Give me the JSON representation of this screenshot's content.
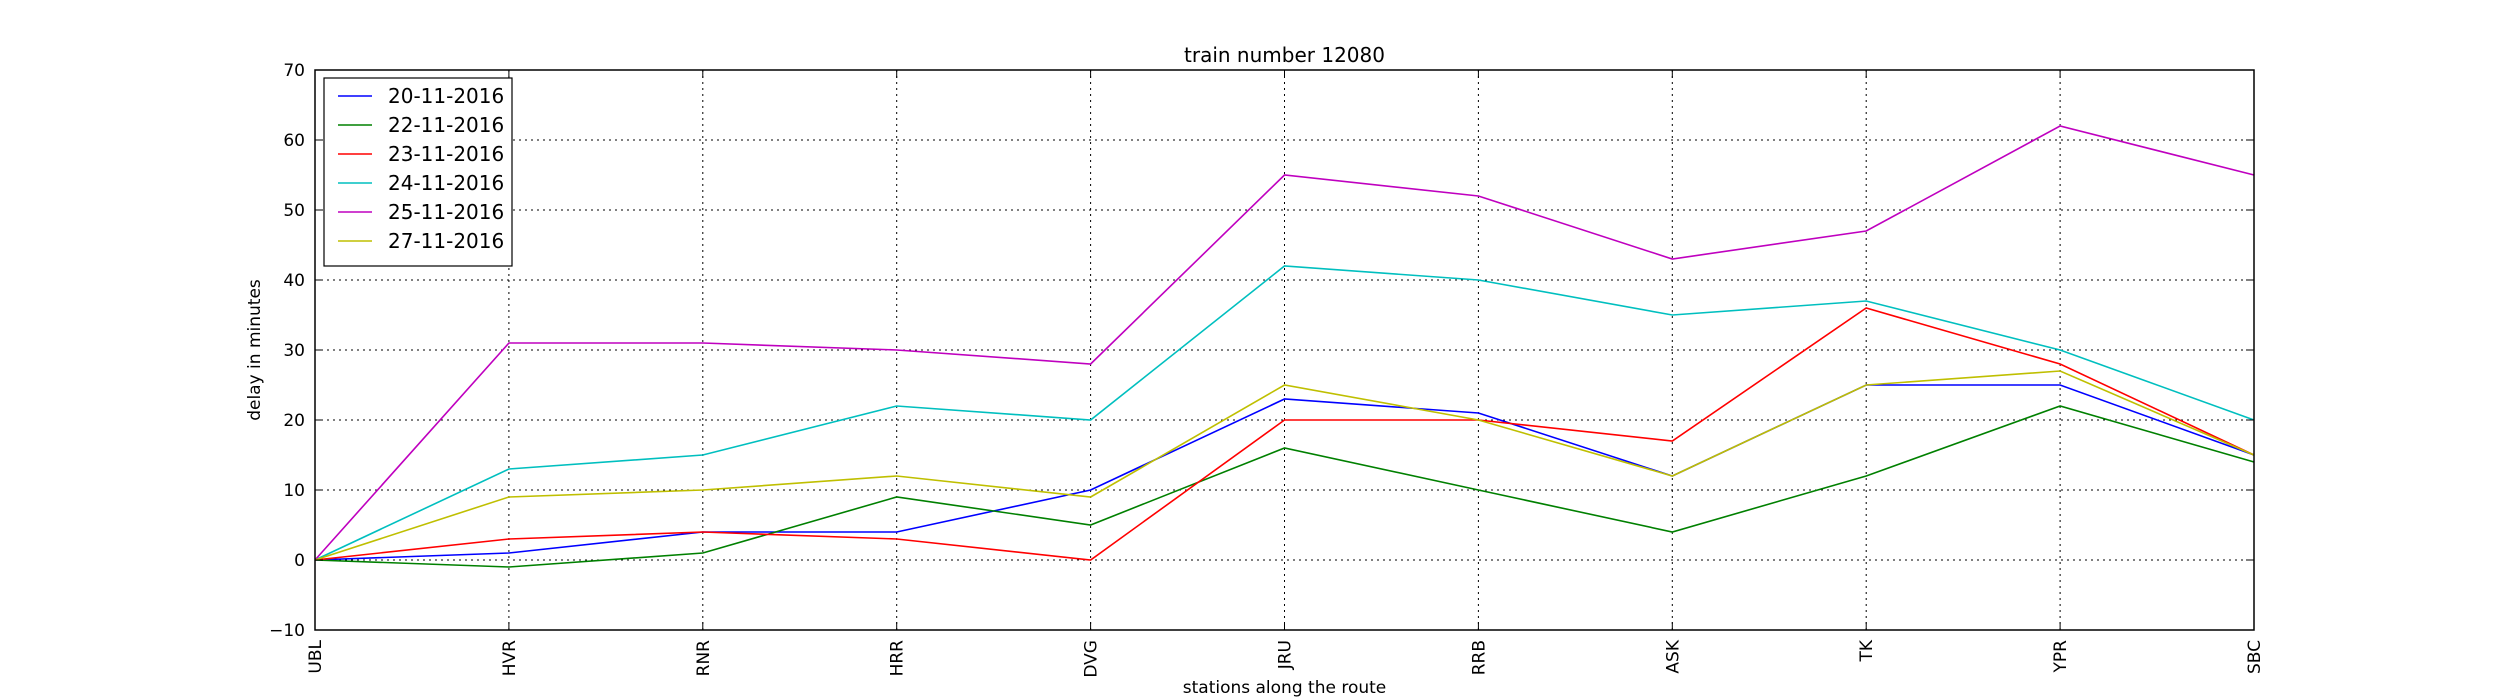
{
  "chart_data": {
    "type": "line",
    "title": "train number 12080",
    "xlabel": "stations along the route",
    "ylabel": "delay in minutes",
    "categories": [
      "UBL",
      "HVR",
      "RNR",
      "HRR",
      "DVG",
      "JRU",
      "RRB",
      "ASK",
      "TK",
      "YPR",
      "SBC"
    ],
    "ylim": [
      -10,
      70
    ],
    "yticks": [
      -10,
      0,
      10,
      20,
      30,
      40,
      50,
      60,
      70
    ],
    "grid": true,
    "legend_position": "upper-left",
    "series": [
      {
        "name": "20-11-2016",
        "color": "#0000ff",
        "values": [
          0,
          1,
          4,
          4,
          10,
          23,
          21,
          12,
          25,
          25,
          15
        ]
      },
      {
        "name": "22-11-2016",
        "color": "#008000",
        "values": [
          0,
          -1,
          1,
          9,
          5,
          16,
          10,
          4,
          12,
          22,
          14
        ]
      },
      {
        "name": "23-11-2016",
        "color": "#ff0000",
        "values": [
          0,
          3,
          4,
          3,
          0,
          20,
          20,
          17,
          36,
          28,
          15
        ]
      },
      {
        "name": "24-11-2016",
        "color": "#00bfbf",
        "values": [
          0,
          13,
          15,
          22,
          20,
          42,
          40,
          35,
          37,
          30,
          20
        ]
      },
      {
        "name": "25-11-2016",
        "color": "#bf00bf",
        "values": [
          0,
          31,
          31,
          30,
          28,
          55,
          52,
          43,
          47,
          62,
          55
        ]
      },
      {
        "name": "27-11-2016",
        "color": "#bfbf00",
        "values": [
          0,
          9,
          10,
          12,
          9,
          25,
          20,
          12,
          25,
          27,
          15
        ]
      }
    ]
  }
}
